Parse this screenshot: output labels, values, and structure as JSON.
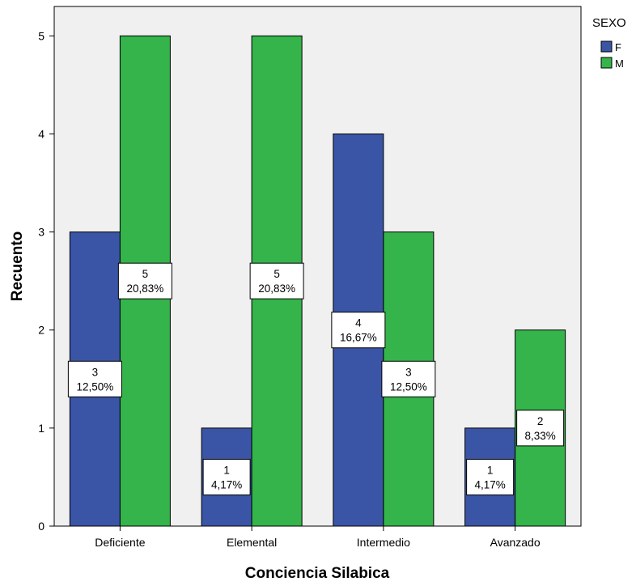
{
  "chart_data": {
    "type": "bar",
    "title": "",
    "xlabel": "Conciencia Silabica",
    "ylabel": "Recuento",
    "categories": [
      "Deficiente",
      "Elemental",
      "Intermedio",
      "Avanzado"
    ],
    "ylim": [
      0,
      5.3
    ],
    "yticks": [
      "0",
      "1",
      "2",
      "3",
      "4",
      "5"
    ],
    "legend": {
      "title": "SEXO",
      "position": "top-right"
    },
    "series": [
      {
        "name": "F",
        "color": "#3b55a6",
        "values": [
          3,
          1,
          4,
          1
        ],
        "labels": [
          {
            "count": "3",
            "pct": "12,50%"
          },
          {
            "count": "1",
            "pct": "4,17%"
          },
          {
            "count": "4",
            "pct": "16,67%"
          },
          {
            "count": "1",
            "pct": "4,17%"
          }
        ]
      },
      {
        "name": "M",
        "color": "#34b44a",
        "values": [
          5,
          5,
          3,
          2
        ],
        "labels": [
          {
            "count": "5",
            "pct": "20,83%"
          },
          {
            "count": "5",
            "pct": "20,83%"
          },
          {
            "count": "3",
            "pct": "12,50%"
          },
          {
            "count": "2",
            "pct": "8,33%"
          }
        ]
      }
    ],
    "plot_background": "#f0f0f0",
    "grid": false
  }
}
